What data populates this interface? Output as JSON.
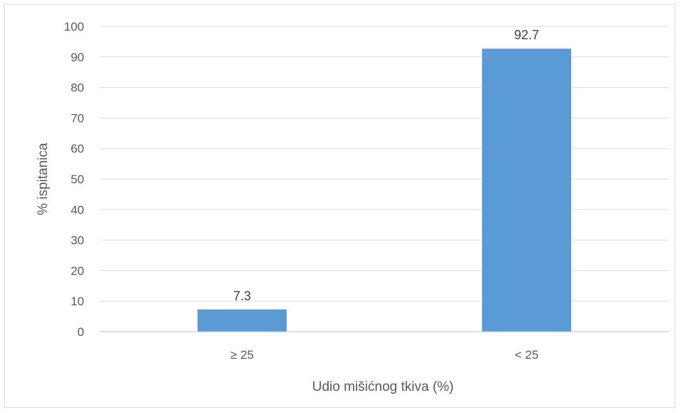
{
  "chart_data": {
    "type": "bar",
    "categories": [
      "≥ 25",
      "< 25"
    ],
    "values": [
      7.3,
      92.7
    ],
    "data_labels": [
      "7.3",
      "92.7"
    ],
    "title": "",
    "xlabel": "Udio mišićnog tkiva (%)",
    "ylabel": "% ispitanica",
    "ylim": [
      0,
      100
    ],
    "yticks": [
      "0",
      "10",
      "20",
      "30",
      "40",
      "50",
      "60",
      "70",
      "80",
      "90",
      "100"
    ],
    "grid": true,
    "legend": "none",
    "colors": {
      "bar": "#5b9bd5",
      "grid": "#d9d9d9",
      "axis": "#bfbfbf",
      "text": "#595959"
    }
  }
}
